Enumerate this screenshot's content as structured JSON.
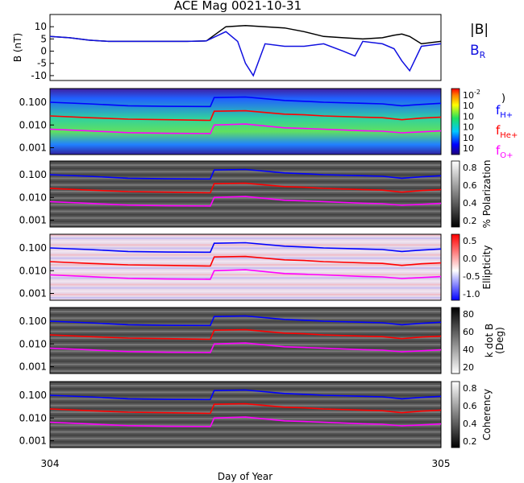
{
  "chart_data": [
    {
      "type": "line",
      "title": "ACE Mag 0021-10-31",
      "ylabel": "B (nT)",
      "ylim": [
        -12,
        15
      ],
      "yticks": [
        10,
        5,
        0,
        -5,
        -10
      ],
      "series": [
        {
          "name": "|B|",
          "color": "#000000",
          "x": [
            304.0,
            304.05,
            304.1,
            304.15,
            304.2,
            304.25,
            304.3,
            304.35,
            304.4,
            304.45,
            304.5,
            304.55,
            304.6,
            304.65,
            304.7,
            304.75,
            304.8,
            304.85,
            304.88,
            304.9,
            304.92,
            304.95,
            305.0
          ],
          "y": [
            6,
            5.5,
            4.5,
            4,
            4,
            4,
            4,
            4,
            4.2,
            10,
            10.5,
            10,
            9.5,
            8,
            6,
            5.5,
            5,
            5.5,
            6.5,
            7,
            6,
            3,
            4
          ]
        },
        {
          "name": "B_R",
          "color": "#1010e0",
          "x": [
            304.0,
            304.05,
            304.1,
            304.15,
            304.2,
            304.25,
            304.3,
            304.35,
            304.4,
            304.45,
            304.48,
            304.5,
            304.52,
            304.55,
            304.6,
            304.65,
            304.7,
            304.75,
            304.78,
            304.8,
            304.85,
            304.88,
            304.9,
            304.92,
            304.95,
            305.0
          ],
          "y": [
            6,
            5.5,
            4.5,
            4,
            4,
            4,
            4,
            4,
            4.2,
            8,
            4,
            -5,
            -10,
            3,
            2,
            2,
            3,
            0,
            -2,
            4,
            3,
            1,
            -4,
            -8,
            2,
            3
          ]
        }
      ],
      "legend": [
        {
          "label": "|B|",
          "color": "#000000"
        },
        {
          "label": "B",
          "sub": "R",
          "color": "#1010e0"
        }
      ]
    },
    {
      "type": "heatmap",
      "ylabel": "",
      "scale": "log",
      "yticks": [
        "0.100",
        "0.010",
        "0.001"
      ],
      "colorbar": {
        "ticks": [
          "10",
          "10",
          "10",
          "10",
          "10",
          "10"
        ],
        "sup": [
          "-2",
          "",
          "",
          "",
          "",
          ""
        ],
        "label": ")"
      },
      "series": [
        {
          "name": "f",
          "sub": "H+",
          "color": "#0000ff"
        },
        {
          "name": "f",
          "sub": "He+",
          "color": "#ff0000"
        },
        {
          "name": "f",
          "sub": "O+",
          "color": "#ff00ff"
        }
      ]
    },
    {
      "type": "heatmap",
      "ylabel": "",
      "yticks": [
        "0.100",
        "0.010",
        "0.001"
      ],
      "colorbar": {
        "label": "% Polarization",
        "ticks": [
          "0.8",
          "0.6",
          "0.4",
          "0.2"
        ]
      }
    },
    {
      "type": "heatmap",
      "ylabel": "",
      "yticks": [
        "0.100",
        "0.010",
        "0.001"
      ],
      "colorbar": {
        "label": "Ellipticity",
        "ticks": [
          "0.5",
          "0.0",
          "-0.5",
          "-1.0"
        ]
      }
    },
    {
      "type": "heatmap",
      "ylabel": "",
      "yticks": [
        "0.100",
        "0.010",
        "0.001"
      ],
      "colorbar": {
        "label": "k dot B (Deg)",
        "label_lines": [
          "k dot B",
          "(Deg)"
        ],
        "ticks": [
          "80",
          "60",
          "40",
          "20"
        ]
      }
    },
    {
      "type": "heatmap",
      "ylabel": "",
      "yticks": [
        "0.100",
        "0.010",
        "0.001"
      ],
      "colorbar": {
        "label": "Coherency",
        "ticks": [
          "0.8",
          "0.6",
          "0.4",
          "0.2"
        ]
      }
    }
  ],
  "xaxis": {
    "ticks": [
      "304",
      "305"
    ],
    "xlim": [
      304,
      305
    ],
    "label": "Day of Year"
  },
  "gyro_lines": {
    "x": [
      304.0,
      304.1,
      304.2,
      304.3,
      304.41,
      304.42,
      304.5,
      304.6,
      304.65,
      304.7,
      304.8,
      304.85,
      304.9,
      304.95,
      305.0
    ],
    "H": [
      0.1,
      0.085,
      0.07,
      0.066,
      0.065,
      0.16,
      0.17,
      0.12,
      0.11,
      0.1,
      0.09,
      0.085,
      0.07,
      0.08,
      0.09
    ],
    "He": [
      0.025,
      0.021,
      0.018,
      0.017,
      0.016,
      0.04,
      0.042,
      0.03,
      0.028,
      0.025,
      0.022,
      0.021,
      0.017,
      0.02,
      0.022
    ],
    "O": [
      0.0065,
      0.0055,
      0.0046,
      0.0043,
      0.0042,
      0.01,
      0.011,
      0.0075,
      0.007,
      0.0065,
      0.0056,
      0.0053,
      0.0045,
      0.005,
      0.0055
    ]
  }
}
